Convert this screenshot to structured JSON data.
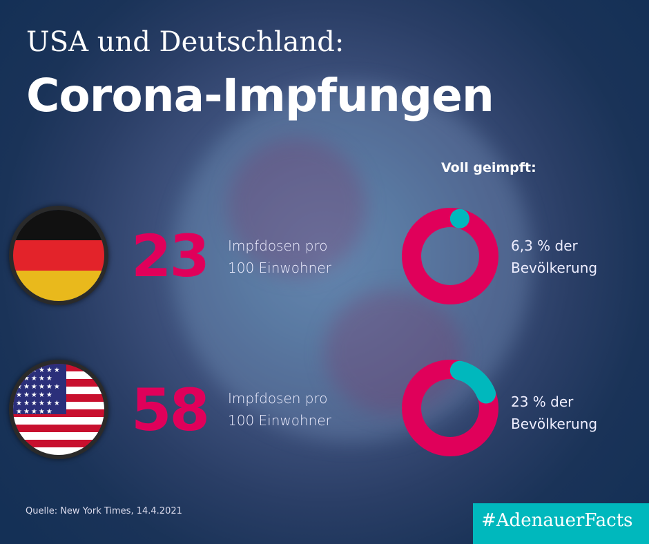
{
  "header": {
    "subtitle": "USA und Deutschland:",
    "title": "Corona-Impfungen"
  },
  "section_label": "Voll geimpft:",
  "rows": [
    {
      "country": "Deutschland",
      "doses": "23",
      "doses_label_1": "Impfdosen pro",
      "doses_label_2": "100 Einwohner",
      "pct_label_1": "6,3 % der",
      "pct_label_2": "Bevölkerung"
    },
    {
      "country": "USA",
      "doses": "58",
      "doses_label_1": "Impfdosen pro",
      "doses_label_2": "100 Einwohner",
      "pct_label_1": "23 % der",
      "pct_label_2": "Bevölkerung"
    }
  ],
  "source": "Quelle: New York Times, 14.4.2021",
  "hashtag": "#AdenauerFacts",
  "colors": {
    "accent": "#e0005a",
    "teal": "#00b8bd"
  },
  "chart_data": [
    {
      "type": "pie",
      "title": "Voll geimpft: Deutschland",
      "categories": [
        "voll geimpft",
        "nicht voll geimpft"
      ],
      "values": [
        6.3,
        93.7
      ]
    },
    {
      "type": "pie",
      "title": "Voll geimpft: USA",
      "categories": [
        "voll geimpft",
        "nicht voll geimpft"
      ],
      "values": [
        23,
        77
      ]
    }
  ]
}
